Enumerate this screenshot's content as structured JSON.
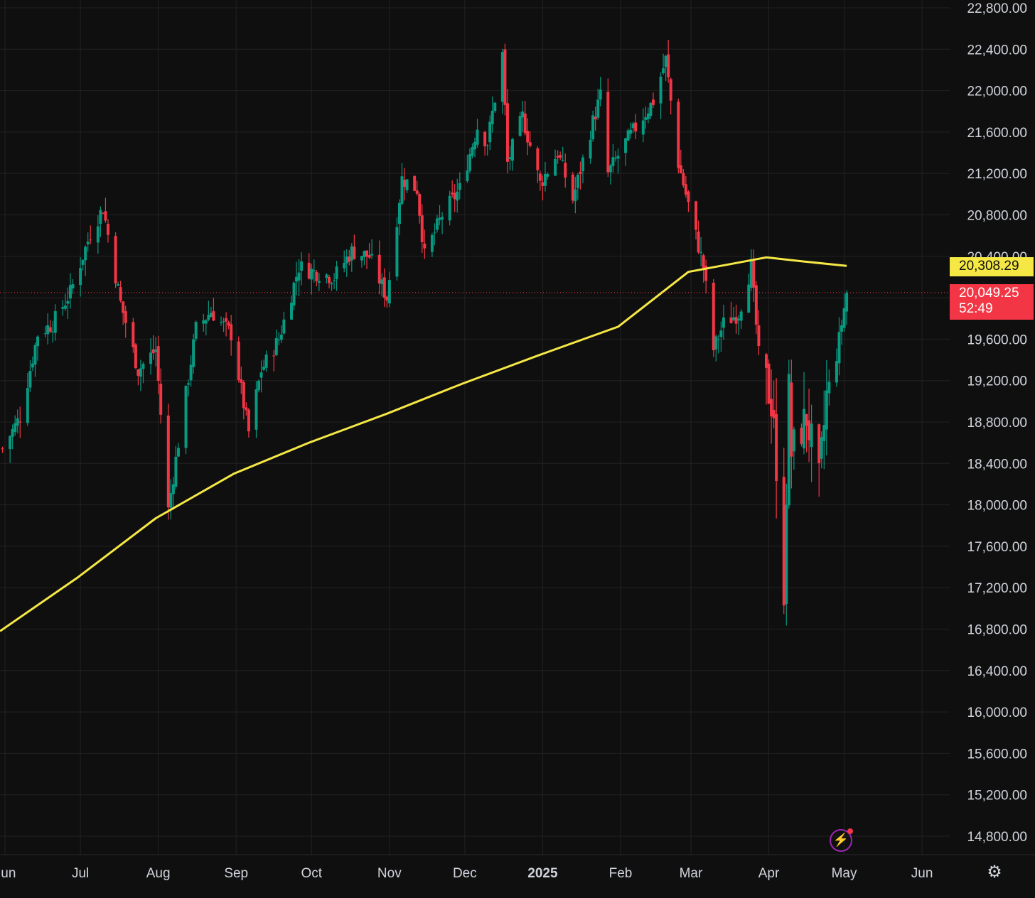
{
  "chart_data": {
    "type": "candlestick",
    "x_ticks": [
      "Jun",
      "Jul",
      "Aug",
      "Sep",
      "Oct",
      "Nov",
      "Dec",
      "2025",
      "Feb",
      "Mar",
      "Apr",
      "May",
      "Jun"
    ],
    "y_ticks": [
      22800,
      22400,
      22000,
      21600,
      21200,
      20800,
      20400,
      20000,
      19600,
      19200,
      18800,
      18400,
      18000,
      17600,
      17200,
      16800,
      16400,
      16000,
      15600,
      15200,
      14800
    ],
    "y_tick_labels": [
      "22,800.00",
      "22,400.00",
      "22,000.00",
      "21,600.00",
      "21,200.00",
      "20,800.00",
      "20,400.00",
      "20,000.00",
      "19,600.00",
      "19,200.00",
      "18,800.00",
      "18,400.00",
      "18,000.00",
      "17,600.00",
      "17,200.00",
      "16,800.00",
      "16,400.00",
      "16,000.00",
      "15,600.00",
      "15,200.00",
      "14,800.00"
    ],
    "ylim": [
      14650,
      22950
    ],
    "start_date": "2024-05-31",
    "x_range": [
      "2024-05-30",
      "2025-06-12"
    ],
    "grid": true,
    "colors": {
      "up": "#089981",
      "down": "#f23645",
      "moving_average": "#f5e845",
      "background": "#0f0f0f",
      "grid": "#222222",
      "axis_text": "#d1d4dc"
    },
    "ohlc_anchors": [
      [
        "2024-05-31",
        18540
      ],
      [
        "2024-06-07",
        18850
      ],
      [
        "2024-06-14",
        19650
      ],
      [
        "2024-06-20",
        19750
      ],
      [
        "2024-06-27",
        20050
      ],
      [
        "2024-07-05",
        20620
      ],
      [
        "2024-07-10",
        20870
      ],
      [
        "2024-07-17",
        19950
      ],
      [
        "2024-07-24",
        19300
      ],
      [
        "2024-07-31",
        19500
      ],
      [
        "2024-08-05",
        17950
      ],
      [
        "2024-08-09",
        18600
      ],
      [
        "2024-08-16",
        19700
      ],
      [
        "2024-08-22",
        19870
      ],
      [
        "2024-08-30",
        19650
      ],
      [
        "2024-09-06",
        18700
      ],
      [
        "2024-09-11",
        19300
      ],
      [
        "2024-09-18",
        19600
      ],
      [
        "2024-09-26",
        20300
      ],
      [
        "2024-10-02",
        20250
      ],
      [
        "2024-10-10",
        20200
      ],
      [
        "2024-10-17",
        20450
      ],
      [
        "2024-10-24",
        20400
      ],
      [
        "2024-10-31",
        20000
      ],
      [
        "2024-11-06",
        21150
      ],
      [
        "2024-11-12",
        21050
      ],
      [
        "2024-11-15",
        20400
      ],
      [
        "2024-11-22",
        20800
      ],
      [
        "2024-11-29",
        21050
      ],
      [
        "2024-12-06",
        21650
      ],
      [
        "2024-12-10",
        21500
      ],
      [
        "2024-12-16",
        22350
      ],
      [
        "2024-12-18",
        21300
      ],
      [
        "2024-12-24",
        21750
      ],
      [
        "2024-12-31",
        21100
      ],
      [
        "2025-01-07",
        21400
      ],
      [
        "2025-01-13",
        20950
      ],
      [
        "2025-01-21",
        21700
      ],
      [
        "2025-01-24",
        21950
      ],
      [
        "2025-01-27",
        21200
      ],
      [
        "2025-02-03",
        21500
      ],
      [
        "2025-02-10",
        21750
      ],
      [
        "2025-02-14",
        21900
      ],
      [
        "2025-02-19",
        22300
      ],
      [
        "2025-02-24",
        21300
      ],
      [
        "2025-02-28",
        20900
      ],
      [
        "2025-03-06",
        20300
      ],
      [
        "2025-03-10",
        19500
      ],
      [
        "2025-03-14",
        19750
      ],
      [
        "2025-03-20",
        19850
      ],
      [
        "2025-03-25",
        20300
      ],
      [
        "2025-03-28",
        19450
      ],
      [
        "2025-04-03",
        18900
      ],
      [
        "2025-04-04",
        18100
      ],
      [
        "2025-04-07",
        17200
      ],
      [
        "2025-04-09",
        19100
      ],
      [
        "2025-04-10",
        18500
      ],
      [
        "2025-04-16",
        18850
      ],
      [
        "2025-04-21",
        18200
      ],
      [
        "2025-04-24",
        19050
      ],
      [
        "2025-04-28",
        19450
      ],
      [
        "2025-05-02",
        20050
      ]
    ],
    "moving_average": {
      "points": [
        [
          "2024-05-30",
          16780
        ],
        [
          "2024-06-30",
          17300
        ],
        [
          "2024-07-31",
          17870
        ],
        [
          "2024-08-31",
          18300
        ],
        [
          "2024-09-30",
          18600
        ],
        [
          "2024-10-31",
          18880
        ],
        [
          "2024-11-30",
          19170
        ],
        [
          "2024-12-31",
          19450
        ],
        [
          "2025-01-31",
          19720
        ],
        [
          "2025-02-28",
          20250
        ],
        [
          "2025-03-31",
          20390
        ],
        [
          "2025-04-15",
          20350
        ],
        [
          "2025-05-02",
          20308.29
        ]
      ],
      "last_value_label": "20,308.29"
    },
    "last_price": {
      "value": 20049.25,
      "label": "20,049.25",
      "countdown": "52:49"
    }
  },
  "toolbar": {
    "bolt_icon": "⚡",
    "settings_icon": "⚙"
  }
}
